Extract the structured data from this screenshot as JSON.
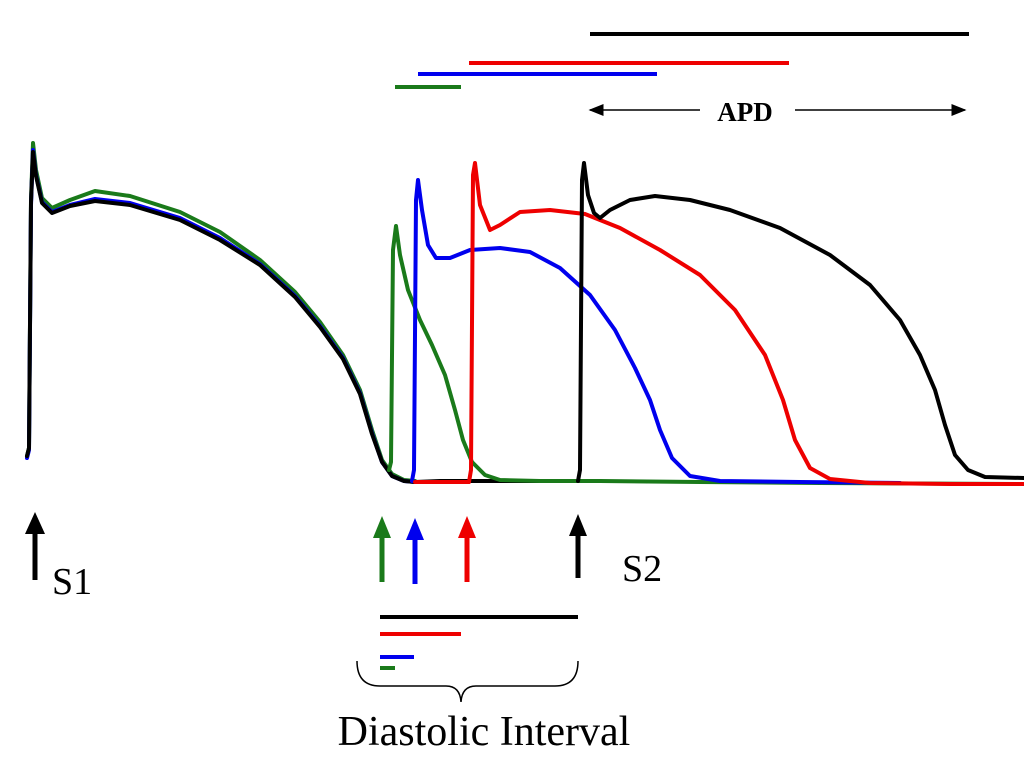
{
  "diagram": {
    "labels": {
      "s1": "S1",
      "s2": "S2",
      "apd": "APD",
      "diastolic_interval": "Diastolic Interval"
    },
    "colors": {
      "black": "#000000",
      "green": "#1a7a1a",
      "blue": "#0000ee",
      "red": "#ee0000"
    },
    "stimulus_arrows": [
      {
        "name": "s1",
        "color": "black"
      },
      {
        "name": "green",
        "color": "green"
      },
      {
        "name": "blue",
        "color": "blue"
      },
      {
        "name": "red",
        "color": "red"
      },
      {
        "name": "s2",
        "color": "black"
      }
    ],
    "traces": [
      "green",
      "blue",
      "red",
      "black"
    ]
  }
}
